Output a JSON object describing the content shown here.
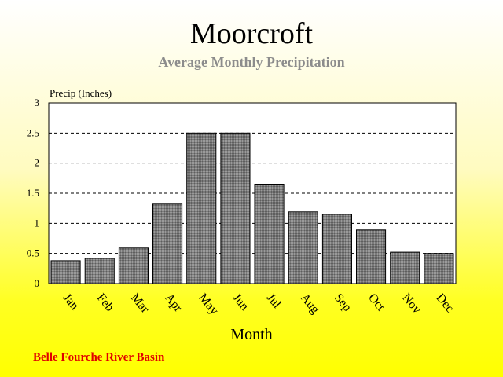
{
  "chart_data": {
    "type": "bar",
    "title": "Moorcroft",
    "subtitle": "Average Monthly Precipitation",
    "ylabel": "Precip (Inches)",
    "xlabel": "Month",
    "categories": [
      "Jan",
      "Feb",
      "Mar",
      "Apr",
      "May",
      "Jun",
      "Jul",
      "Aug",
      "Sep",
      "Oct",
      "Nov",
      "Dec"
    ],
    "values": [
      0.38,
      0.42,
      0.59,
      1.32,
      2.5,
      2.5,
      1.65,
      1.19,
      1.15,
      0.89,
      0.52,
      0.5
    ],
    "ylim": [
      0,
      3
    ],
    "yticks": [
      "0",
      "0.5",
      "1",
      "1.5",
      "2",
      "2.5",
      "3"
    ],
    "grid": true,
    "bar_color": "#808080"
  },
  "footer": "Belle Fourche River Basin"
}
